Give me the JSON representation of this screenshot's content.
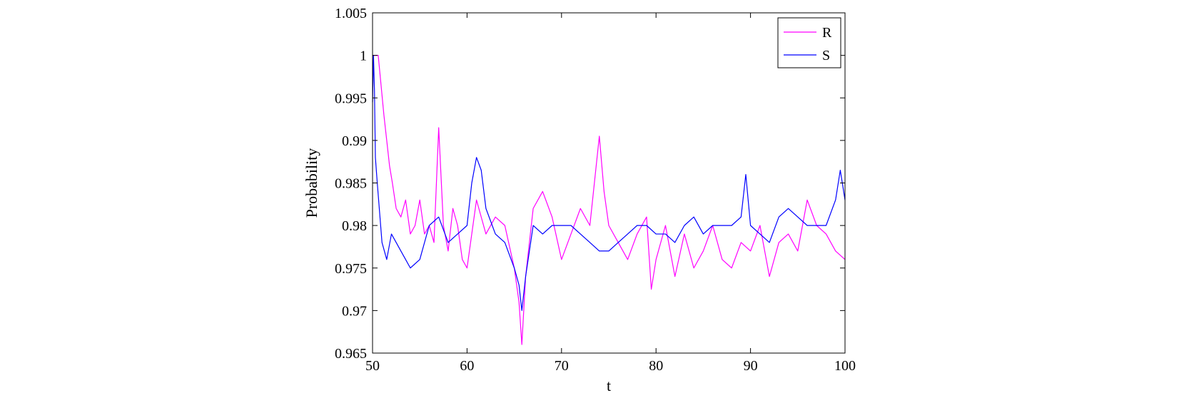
{
  "chart_data": {
    "type": "line",
    "title": "",
    "xlabel": "t",
    "ylabel": "Probability",
    "xlim": [
      50,
      100
    ],
    "ylim": [
      0.965,
      1.005
    ],
    "grid": false,
    "legend_position": "top-right",
    "x_ticks": [
      50,
      60,
      70,
      80,
      90,
      100
    ],
    "x_tick_labels": [
      "50",
      "60",
      "70",
      "80",
      "90",
      "100"
    ],
    "y_ticks": [
      0.965,
      0.97,
      0.975,
      0.98,
      0.985,
      0.99,
      0.995,
      1,
      1.005
    ],
    "y_tick_labels": [
      "0.965",
      "0.97",
      "0.975",
      "0.98",
      "0.985",
      "0.99",
      "0.995",
      "1",
      "1.005"
    ],
    "series": [
      {
        "name": "R",
        "color": "#ff00ff",
        "x": [
          50,
          50.3,
          50.6,
          50.9,
          51.2,
          51.5,
          51.8,
          52.1,
          52.5,
          53,
          53.5,
          54,
          54.5,
          55,
          55.5,
          56,
          56.5,
          57,
          57.5,
          58,
          58.5,
          59,
          59.5,
          60,
          61,
          62,
          63,
          64,
          65,
          65.5,
          65.8,
          66.2,
          67,
          68,
          69,
          70,
          71,
          72,
          73,
          74,
          74.5,
          75,
          76,
          77,
          78,
          79,
          79.5,
          80,
          81,
          82,
          83,
          84,
          85,
          86,
          87,
          88,
          89,
          90,
          91,
          92,
          93,
          94,
          95,
          96,
          97,
          98,
          99,
          100
        ],
        "y": [
          1.0,
          1.0,
          1.0,
          0.9965,
          0.993,
          0.99,
          0.987,
          0.985,
          0.982,
          0.981,
          0.983,
          0.979,
          0.98,
          0.983,
          0.979,
          0.98,
          0.978,
          0.9915,
          0.98,
          0.977,
          0.982,
          0.98,
          0.976,
          0.975,
          0.983,
          0.979,
          0.981,
          0.98,
          0.975,
          0.971,
          0.966,
          0.974,
          0.982,
          0.984,
          0.981,
          0.976,
          0.979,
          0.982,
          0.98,
          0.9905,
          0.984,
          0.98,
          0.978,
          0.976,
          0.979,
          0.981,
          0.9725,
          0.976,
          0.98,
          0.974,
          0.979,
          0.975,
          0.977,
          0.98,
          0.976,
          0.975,
          0.978,
          0.977,
          0.98,
          0.974,
          0.978,
          0.979,
          0.977,
          0.983,
          0.98,
          0.979,
          0.977,
          0.976
        ]
      },
      {
        "name": "S",
        "color": "#0000ff",
        "x": [
          50,
          50.1,
          50.2,
          50.3,
          50.5,
          51,
          51.5,
          52,
          52.5,
          53,
          53.5,
          54,
          55,
          56,
          57,
          58,
          59,
          60,
          60.5,
          61,
          61.5,
          62,
          63,
          64,
          65,
          65.5,
          65.8,
          66.2,
          67,
          68,
          69,
          70,
          71,
          72,
          73,
          74,
          75,
          76,
          77,
          78,
          79,
          80,
          81,
          82,
          83,
          84,
          85,
          86,
          87,
          88,
          89,
          89.5,
          90,
          91,
          92,
          93,
          94,
          95,
          96,
          97,
          98,
          99,
          99.5,
          100
        ],
        "y": [
          0.9945,
          1.0,
          0.996,
          0.988,
          0.985,
          0.978,
          0.976,
          0.979,
          0.978,
          0.977,
          0.976,
          0.975,
          0.976,
          0.98,
          0.981,
          0.978,
          0.979,
          0.98,
          0.985,
          0.988,
          0.9865,
          0.982,
          0.979,
          0.978,
          0.975,
          0.973,
          0.97,
          0.974,
          0.98,
          0.979,
          0.98,
          0.98,
          0.98,
          0.979,
          0.978,
          0.977,
          0.977,
          0.978,
          0.979,
          0.98,
          0.98,
          0.979,
          0.979,
          0.978,
          0.98,
          0.981,
          0.979,
          0.98,
          0.98,
          0.98,
          0.981,
          0.986,
          0.98,
          0.979,
          0.978,
          0.981,
          0.982,
          0.981,
          0.98,
          0.98,
          0.98,
          0.983,
          0.9865,
          0.983
        ]
      }
    ]
  }
}
